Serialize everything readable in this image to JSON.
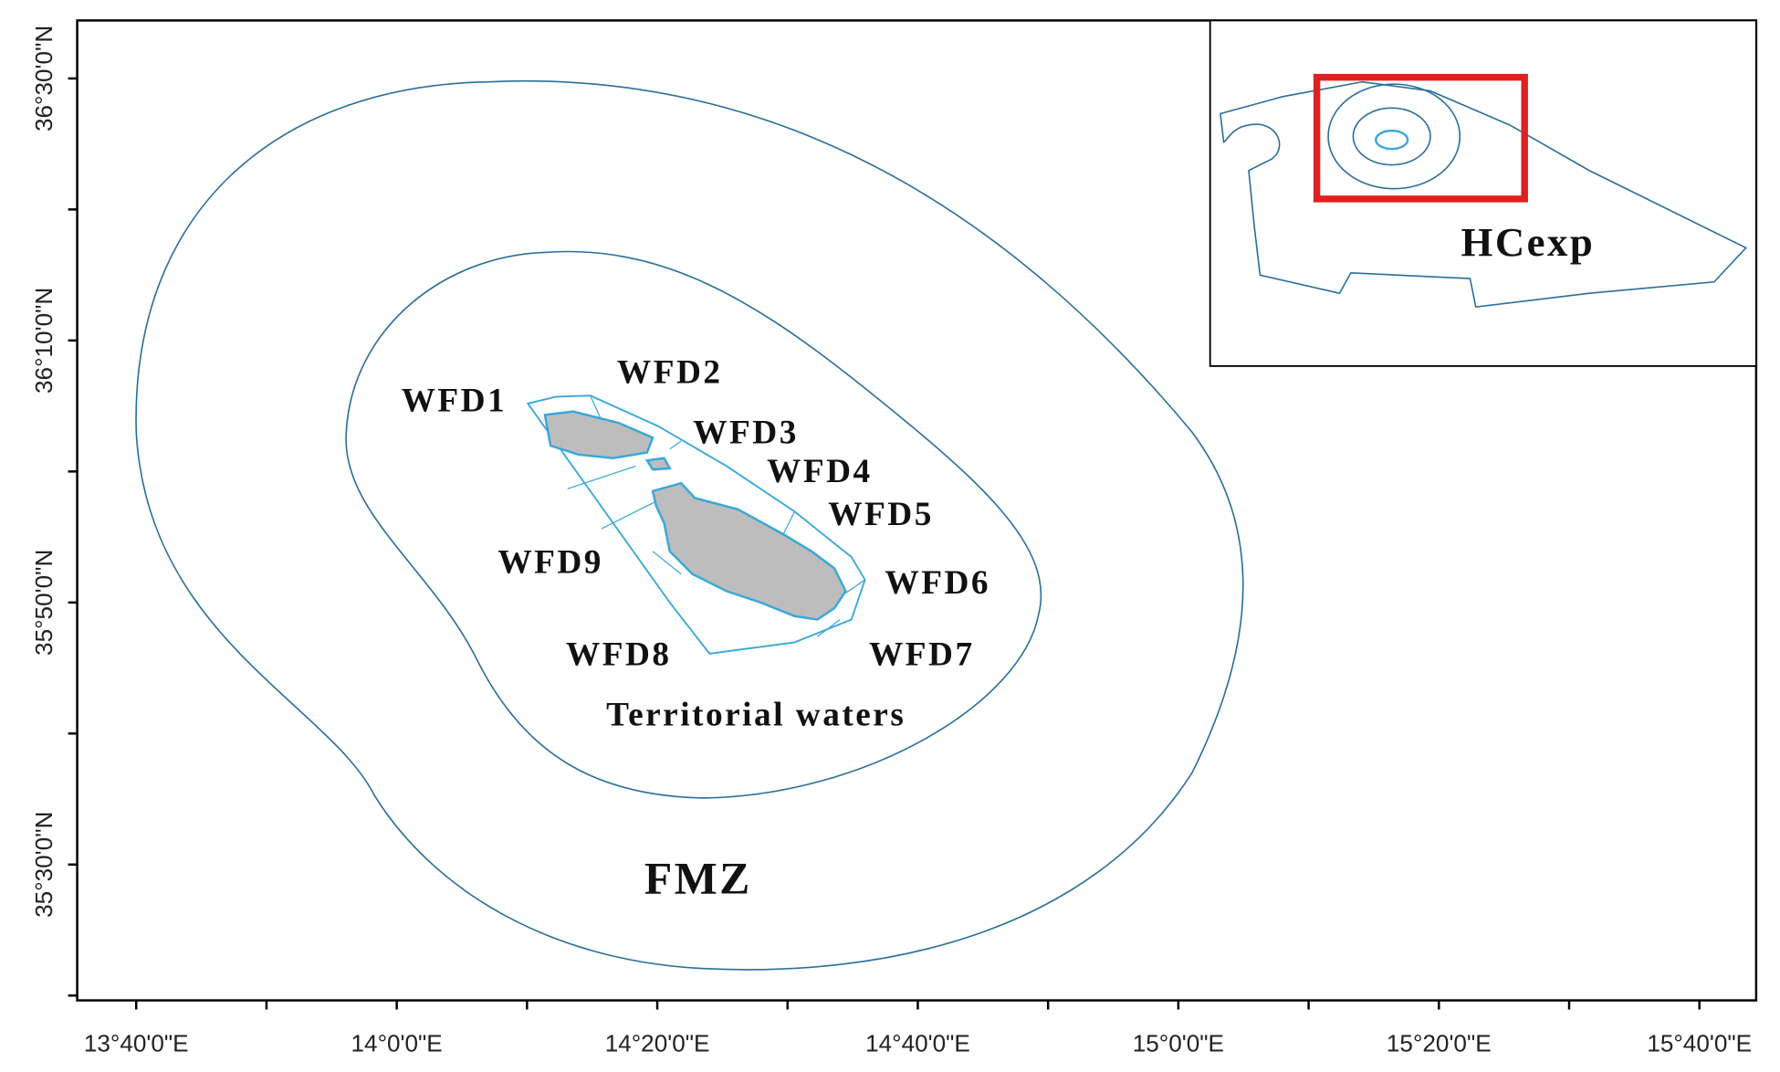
{
  "map": {
    "x_ticks": [
      "13°40'0\"E",
      "14°0'0\"E",
      "14°20'0\"E",
      "14°40'0\"E",
      "15°0'0\"E",
      "15°20'0\"E",
      "15°40'0\"E"
    ],
    "y_ticks": [
      "36°30'0\"N",
      "36°10'0\"N",
      "35°50'0\"N",
      "35°30'0\"N"
    ],
    "labels": [
      "WFD1",
      "WFD2",
      "WFD3",
      "WFD4",
      "WFD5",
      "WFD6",
      "WFD7",
      "WFD8",
      "WFD9",
      "Territorial waters",
      "FMZ"
    ],
    "inset_label": "HCexp"
  }
}
